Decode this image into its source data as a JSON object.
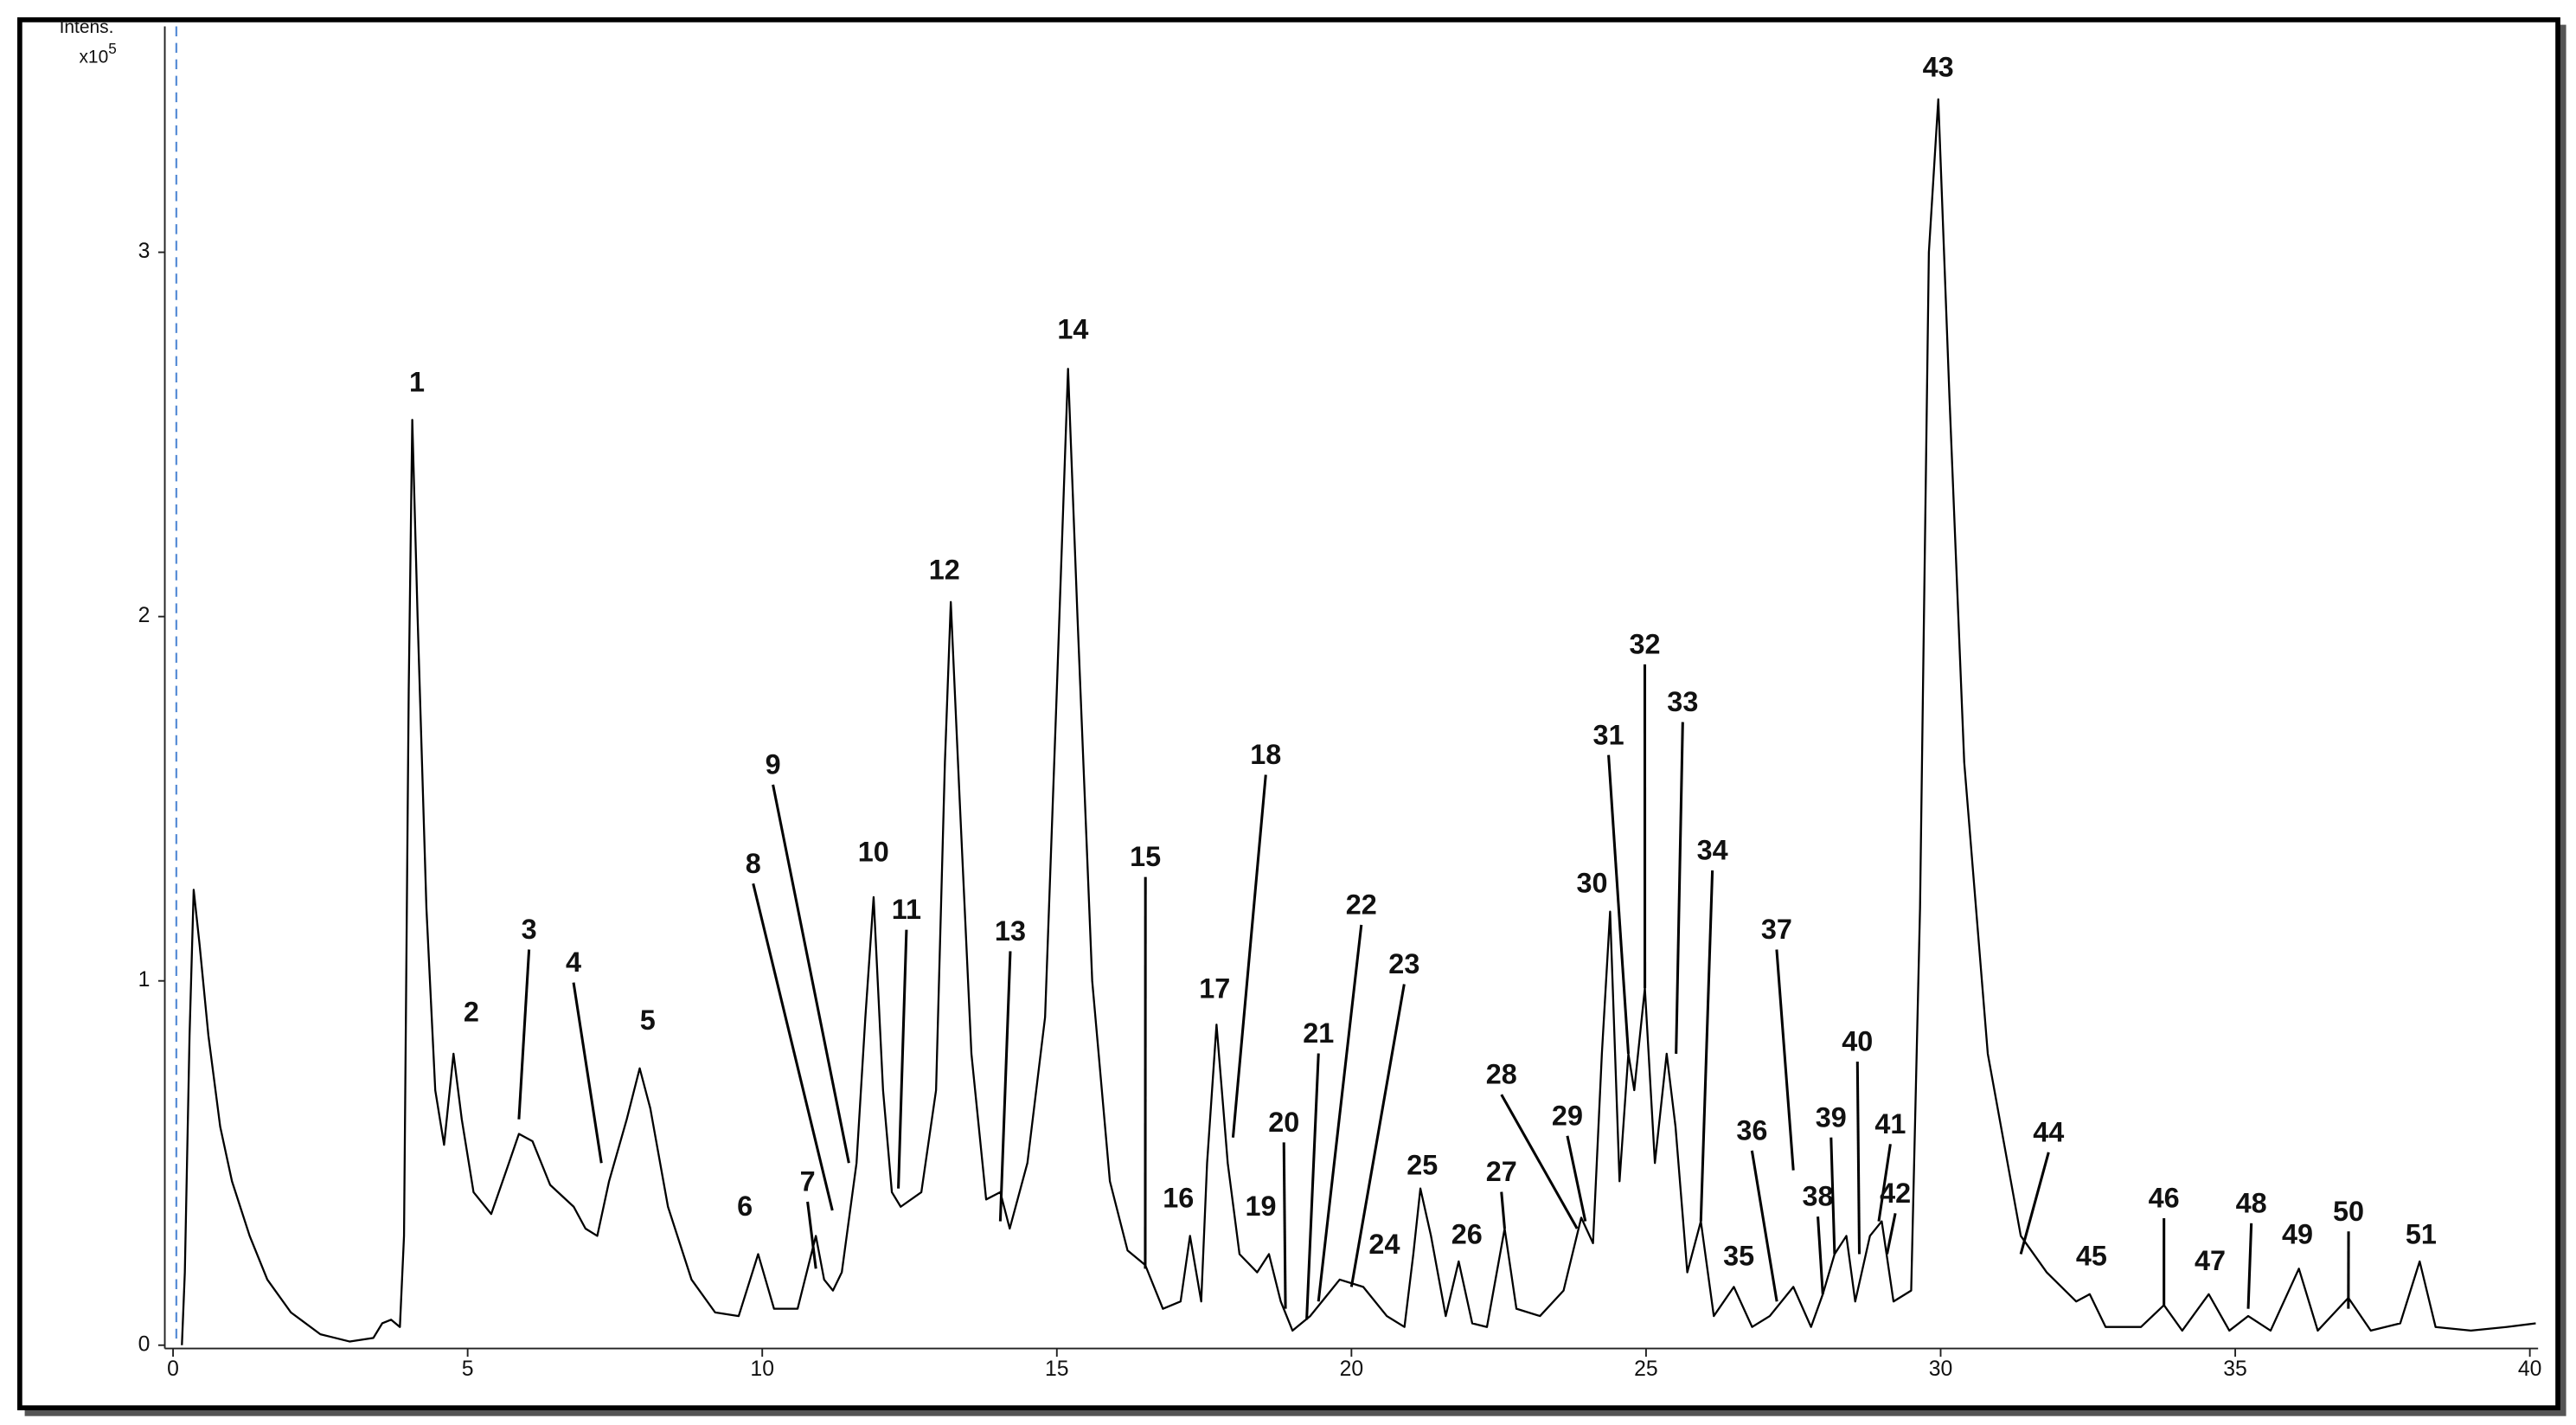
{
  "chart_data": {
    "type": "line",
    "ylabel": "Intens.",
    "yscale": {
      "base": "x10",
      "exponent": "5"
    },
    "color": "#000000",
    "xlim": [
      -0.14,
      40.14
    ],
    "ylim": [
      0,
      3.62
    ],
    "xticks": [
      0,
      5,
      10,
      15,
      20,
      25,
      30,
      35,
      40
    ],
    "yticks": [
      0,
      1,
      2,
      3
    ],
    "x": [
      0.15,
      0.2,
      0.28,
      0.35,
      0.45,
      0.6,
      0.8,
      1.0,
      1.3,
      1.6,
      2.0,
      2.5,
      3.0,
      3.4,
      3.55,
      3.7,
      3.85,
      3.92,
      4.0,
      4.06,
      4.15,
      4.3,
      4.45,
      4.6,
      4.76,
      4.9,
      5.1,
      5.4,
      5.7,
      5.87,
      6.1,
      6.4,
      6.8,
      7.0,
      7.2,
      7.4,
      7.7,
      7.92,
      8.1,
      8.4,
      8.8,
      9.2,
      9.6,
      9.93,
      10.2,
      10.6,
      10.91,
      11.05,
      11.2,
      11.35,
      11.6,
      11.75,
      11.89,
      12.05,
      12.2,
      12.35,
      12.7,
      12.95,
      13.1,
      13.2,
      13.35,
      13.55,
      13.8,
      14.04,
      14.2,
      14.5,
      14.8,
      15.0,
      15.19,
      15.35,
      15.6,
      15.9,
      16.2,
      16.5,
      16.8,
      17.1,
      17.26,
      17.45,
      17.55,
      17.71,
      17.9,
      18.1,
      18.4,
      18.6,
      18.8,
      19.0,
      19.3,
      19.5,
      19.8,
      20.2,
      20.6,
      20.9,
      21.05,
      21.17,
      21.35,
      21.6,
      21.82,
      22.05,
      22.3,
      22.6,
      22.8,
      23.2,
      23.6,
      23.9,
      24.1,
      24.25,
      24.39,
      24.55,
      24.7,
      24.8,
      24.98,
      25.15,
      25.35,
      25.5,
      25.7,
      25.93,
      26.15,
      26.49,
      26.8,
      27.1,
      27.5,
      27.8,
      28.0,
      28.2,
      28.4,
      28.55,
      28.8,
      29.0,
      29.2,
      29.5,
      29.65,
      29.8,
      29.96,
      30.15,
      30.4,
      30.8,
      31.36,
      31.8,
      32.3,
      32.53,
      32.8,
      33.4,
      33.79,
      34.1,
      34.55,
      34.9,
      35.22,
      35.6,
      36.08,
      36.4,
      36.92,
      37.3,
      37.8,
      38.13,
      38.4,
      39.0,
      39.6,
      40.1
    ],
    "values": [
      0,
      0.2,
      0.85,
      1.25,
      1.1,
      0.85,
      0.6,
      0.45,
      0.3,
      0.18,
      0.09,
      0.03,
      0.01,
      0.02,
      0.06,
      0.07,
      0.05,
      0.3,
      1.8,
      2.54,
      2.0,
      1.2,
      0.7,
      0.55,
      0.8,
      0.62,
      0.42,
      0.36,
      0.5,
      0.58,
      0.56,
      0.44,
      0.38,
      0.32,
      0.3,
      0.45,
      0.62,
      0.76,
      0.65,
      0.38,
      0.18,
      0.09,
      0.08,
      0.25,
      0.1,
      0.1,
      0.3,
      0.18,
      0.15,
      0.2,
      0.5,
      0.9,
      1.23,
      0.7,
      0.42,
      0.38,
      0.42,
      0.7,
      1.6,
      2.04,
      1.5,
      0.8,
      0.4,
      0.42,
      0.32,
      0.5,
      0.9,
      1.8,
      2.68,
      2.0,
      1.0,
      0.45,
      0.26,
      0.22,
      0.1,
      0.12,
      0.3,
      0.12,
      0.5,
      0.88,
      0.5,
      0.25,
      0.2,
      0.25,
      0.12,
      0.04,
      0.08,
      0.12,
      0.18,
      0.16,
      0.08,
      0.05,
      0.25,
      0.43,
      0.3,
      0.08,
      0.23,
      0.06,
      0.05,
      0.32,
      0.1,
      0.08,
      0.15,
      0.35,
      0.28,
      0.8,
      1.19,
      0.45,
      0.8,
      0.7,
      0.98,
      0.5,
      0.8,
      0.6,
      0.2,
      0.34,
      0.08,
      0.16,
      0.05,
      0.08,
      0.16,
      0.05,
      0.14,
      0.25,
      0.3,
      0.12,
      0.3,
      0.34,
      0.12,
      0.15,
      1.2,
      3.0,
      3.42,
      2.6,
      1.6,
      0.8,
      0.3,
      0.2,
      0.12,
      0.14,
      0.05,
      0.05,
      0.11,
      0.04,
      0.14,
      0.04,
      0.08,
      0.04,
      0.21,
      0.04,
      0.13,
      0.04,
      0.06,
      0.23,
      0.05,
      0.04,
      0.05,
      0.06
    ],
    "annotations": [
      {
        "text": "1",
        "x": 4.06,
        "y": 2.54
      },
      {
        "text": "2",
        "x": 4.76,
        "y": 0.8
      },
      {
        "text": "3",
        "x": 5.87,
        "y": 0.62
      },
      {
        "text": "4",
        "x": 7.27,
        "y": 0.5
      },
      {
        "text": "5",
        "x": 7.92,
        "y": 0.76
      },
      {
        "text": "6",
        "x": 9.93,
        "y": 0.25
      },
      {
        "text": "7",
        "x": 10.91,
        "y": 0.21
      },
      {
        "text": "8",
        "x": 11.19,
        "y": 0.37
      },
      {
        "text": "9",
        "x": 11.47,
        "y": 0.5
      },
      {
        "text": "10",
        "x": 11.89,
        "y": 1.23
      },
      {
        "text": "11",
        "x": 12.31,
        "y": 0.43
      },
      {
        "text": "12",
        "x": 13.2,
        "y": 2.04
      },
      {
        "text": "13",
        "x": 14.04,
        "y": 0.34
      },
      {
        "text": "14",
        "x": 15.19,
        "y": 2.68
      },
      {
        "text": "15",
        "x": 16.5,
        "y": 0.21
      },
      {
        "text": "16",
        "x": 17.26,
        "y": 0.3
      },
      {
        "text": "17",
        "x": 17.71,
        "y": 0.88
      },
      {
        "text": "18",
        "x": 17.99,
        "y": 0.57
      },
      {
        "text": "19",
        "x": 18.6,
        "y": 0.25
      },
      {
        "text": "20",
        "x": 18.88,
        "y": 0.1
      },
      {
        "text": "21",
        "x": 19.24,
        "y": 0.07
      },
      {
        "text": "22",
        "x": 19.44,
        "y": 0.12
      },
      {
        "text": "23",
        "x": 20.0,
        "y": 0.16
      },
      {
        "text": "24",
        "x": 20.28,
        "y": 0.16
      },
      {
        "text": "25",
        "x": 21.17,
        "y": 0.43
      },
      {
        "text": "26",
        "x": 21.82,
        "y": 0.23
      },
      {
        "text": "27",
        "x": 22.6,
        "y": 0.32
      },
      {
        "text": "28",
        "x": 23.83,
        "y": 0.32
      },
      {
        "text": "29",
        "x": 23.97,
        "y": 0.34
      },
      {
        "text": "30",
        "x": 24.39,
        "y": 1.19
      },
      {
        "text": "31",
        "x": 24.7,
        "y": 0.8
      },
      {
        "text": "32",
        "x": 24.98,
        "y": 0.98
      },
      {
        "text": "33",
        "x": 25.51,
        "y": 0.8
      },
      {
        "text": "34",
        "x": 25.93,
        "y": 0.34
      },
      {
        "text": "35",
        "x": 26.49,
        "y": 0.16
      },
      {
        "text": "36",
        "x": 27.22,
        "y": 0.12
      },
      {
        "text": "37",
        "x": 27.5,
        "y": 0.48
      },
      {
        "text": "38",
        "x": 28.0,
        "y": 0.14
      },
      {
        "text": "39",
        "x": 28.2,
        "y": 0.25
      },
      {
        "text": "40",
        "x": 28.62,
        "y": 0.25
      },
      {
        "text": "41",
        "x": 28.95,
        "y": 0.34
      },
      {
        "text": "42",
        "x": 29.09,
        "y": 0.25
      },
      {
        "text": "43",
        "x": 29.96,
        "y": 3.42
      },
      {
        "text": "44",
        "x": 31.36,
        "y": 0.25
      },
      {
        "text": "45",
        "x": 32.53,
        "y": 0.14
      },
      {
        "text": "46",
        "x": 33.79,
        "y": 0.11
      },
      {
        "text": "47",
        "x": 34.55,
        "y": 0.14
      },
      {
        "text": "48",
        "x": 35.22,
        "y": 0.1
      },
      {
        "text": "49",
        "x": 36.08,
        "y": 0.21
      },
      {
        "text": "50",
        "x": 36.92,
        "y": 0.1
      },
      {
        "text": "51",
        "x": 38.13,
        "y": 0.23
      }
    ]
  }
}
